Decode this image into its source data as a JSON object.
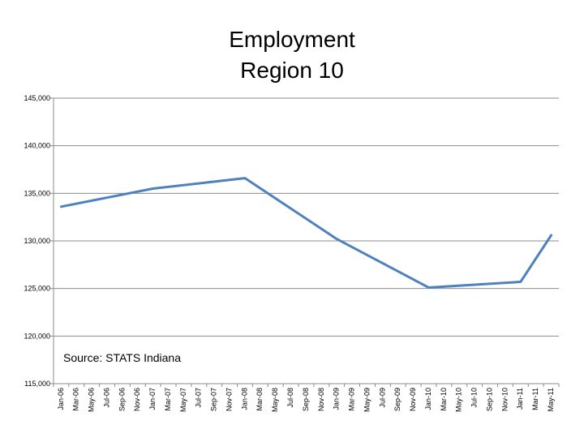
{
  "chart_data": {
    "type": "line",
    "title": "Employment",
    "subtitle": "Region 10",
    "annotation": "Source:  STATS Indiana",
    "ylim": [
      115000,
      145000
    ],
    "y_ticks": [
      "115,000",
      "120,000",
      "125,000",
      "130,000",
      "135,000",
      "140,000",
      "145,000"
    ],
    "y_tick_values": [
      115000,
      120000,
      125000,
      130000,
      135000,
      140000,
      145000
    ],
    "categories": [
      "Jan-06",
      "Mar-06",
      "May-06",
      "Jul-06",
      "Sep-06",
      "Nov-06",
      "Jan-07",
      "Mar-07",
      "May-07",
      "Jul-07",
      "Sep-07",
      "Nov-07",
      "Jan-08",
      "Mar-08",
      "May-08",
      "Jul-08",
      "Sep-08",
      "Nov-08",
      "Jan-09",
      "Mar-09",
      "May-09",
      "Jul-09",
      "Sep-09",
      "Nov-09",
      "Jan-10",
      "Mar-10",
      "May-10",
      "Jul-10",
      "Sep-10",
      "Nov-10",
      "Jan-11",
      "Mar-11",
      "May-11"
    ],
    "grid": true,
    "legend": "none",
    "line_color": "#4f81bd",
    "series": [
      {
        "points": [
          {
            "x": "Jan-06",
            "y": 133600
          },
          {
            "x": "Jan-07",
            "y": 135500
          },
          {
            "x": "Jan-08",
            "y": 136600
          },
          {
            "x": "Jan-09",
            "y": 130200
          },
          {
            "x": "Jan-10",
            "y": 125100
          },
          {
            "x": "Jan-11",
            "y": 125700
          },
          {
            "x": "May-11",
            "y": 130600
          }
        ]
      }
    ]
  }
}
